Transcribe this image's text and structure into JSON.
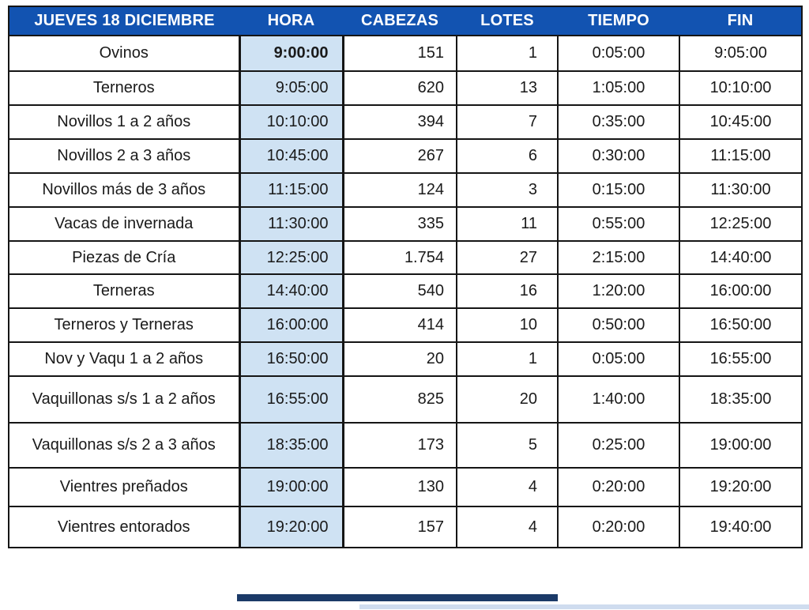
{
  "table": {
    "columns": [
      {
        "key": "label",
        "header": "JUEVES 18 DICIEMBRE"
      },
      {
        "key": "hora",
        "header": "HORA"
      },
      {
        "key": "cabezas",
        "header": "CABEZAS"
      },
      {
        "key": "lotes",
        "header": "LOTES"
      },
      {
        "key": "tiempo",
        "header": "TIEMPO"
      },
      {
        "key": "fin",
        "header": "FIN"
      }
    ],
    "rows": [
      {
        "label": "Ovinos",
        "hora": "9:00:00",
        "cabezas": "151",
        "lotes": "1",
        "tiempo": "0:05:00",
        "fin": "9:05:00",
        "hora_bold": true
      },
      {
        "label": "Terneros",
        "hora": "9:05:00",
        "cabezas": "620",
        "lotes": "13",
        "tiempo": "1:05:00",
        "fin": "10:10:00"
      },
      {
        "label": "Novillos 1 a 2 años",
        "hora": "10:10:00",
        "cabezas": "394",
        "lotes": "7",
        "tiempo": "0:35:00",
        "fin": "10:45:00"
      },
      {
        "label": "Novillos 2 a 3 años",
        "hora": "10:45:00",
        "cabezas": "267",
        "lotes": "6",
        "tiempo": "0:30:00",
        "fin": "11:15:00"
      },
      {
        "label": "Novillos más de 3 años",
        "hora": "11:15:00",
        "cabezas": "124",
        "lotes": "3",
        "tiempo": "0:15:00",
        "fin": "11:30:00"
      },
      {
        "label": "Vacas de invernada",
        "hora": "11:30:00",
        "cabezas": "335",
        "lotes": "11",
        "tiempo": "0:55:00",
        "fin": "12:25:00"
      },
      {
        "label": "Piezas de Cría",
        "hora": "12:25:00",
        "cabezas": "1.754",
        "lotes": "27",
        "tiempo": "2:15:00",
        "fin": "14:40:00"
      },
      {
        "label": "Terneras",
        "hora": "14:40:00",
        "cabezas": "540",
        "lotes": "16",
        "tiempo": "1:20:00",
        "fin": "16:00:00"
      },
      {
        "label": "Terneros y Terneras",
        "hora": "16:00:00",
        "cabezas": "414",
        "lotes": "10",
        "tiempo": "0:50:00",
        "fin": "16:50:00"
      },
      {
        "label": "Nov y Vaqu 1 a 2 años",
        "hora": "16:50:00",
        "cabezas": "20",
        "lotes": "1",
        "tiempo": "0:05:00",
        "fin": "16:55:00"
      },
      {
        "label": "Vaquillonas s/s 1 a 2 años",
        "hora": "16:55:00",
        "cabezas": "825",
        "lotes": "20",
        "tiempo": "1:40:00",
        "fin": "18:35:00"
      },
      {
        "label": "Vaquillonas s/s 2 a 3 años",
        "hora": "18:35:00",
        "cabezas": "173",
        "lotes": "5",
        "tiempo": "0:25:00",
        "fin": "19:00:00"
      },
      {
        "label": "Vientres preñados",
        "hora": "19:00:00",
        "cabezas": "130",
        "lotes": "4",
        "tiempo": "0:20:00",
        "fin": "19:20:00"
      },
      {
        "label": "Vientres entorados",
        "hora": "19:20:00",
        "cabezas": "157",
        "lotes": "4",
        "tiempo": "0:20:00",
        "fin": "19:40:00"
      }
    ]
  },
  "colors": {
    "header_bg": "#1253b1",
    "header_text": "#ffffff",
    "hora_fill": "#cfe2f3",
    "grid": "#151515",
    "cell_text": "#1a1a1a",
    "selection_navy": "#1b3a68",
    "bottom_strip": "#cfdcef"
  }
}
